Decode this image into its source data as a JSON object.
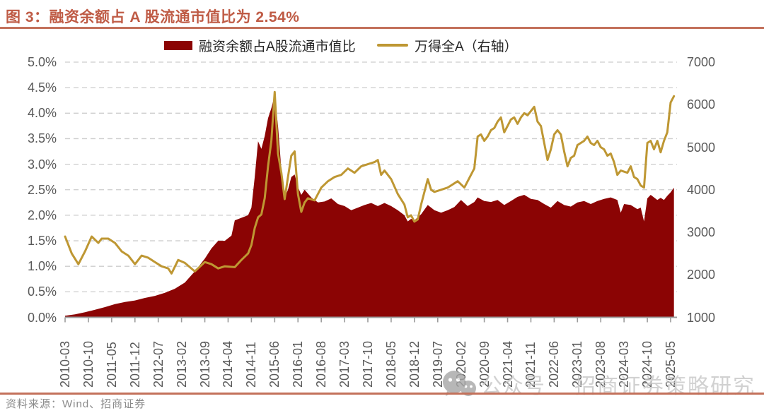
{
  "header": {
    "title": "图 3：融资余额占 A 股流通市值比为 2.54%",
    "accent_color": "#bf5b45"
  },
  "legend": {
    "area_label": "融资余额占A股流通市值比",
    "line_label": "万得全A（右轴）"
  },
  "source": "资料来源：Wind、招商证券",
  "watermark": {
    "icon": "wechat-icon",
    "badge": "公众号",
    "text": "招商证券策略研究",
    "color": "#c6c6c6"
  },
  "chart_data": {
    "type": "area+line combo, dual axis",
    "title": "融资余额占 A 股流通市值比为 2.54%",
    "grid": "horizontal dashed",
    "colors": {
      "area": "#8b0404",
      "line": "#be9733",
      "axis_text": "#595959",
      "gridline": "#cccccc",
      "axis_line": "#9b9b9b"
    },
    "left_axis": {
      "min": 0,
      "max": 5,
      "unit": "%",
      "ticks": [
        "5.0%",
        "4.5%",
        "4.0%",
        "3.5%",
        "3.0%",
        "2.5%",
        "2.0%",
        "1.5%",
        "1.0%",
        "0.5%",
        "0.0%"
      ]
    },
    "right_axis": {
      "min": 1000,
      "max": 7000,
      "ticks": [
        "7000",
        "6000",
        "5000",
        "4000",
        "3000",
        "2000",
        "1000"
      ]
    },
    "x_axis": {
      "first_month": "2010-03",
      "last_month": "2025-05",
      "tick_labels": [
        "2010-03",
        "2010-10",
        "2011-05",
        "2011-12",
        "2012-07",
        "2013-02",
        "2013-09",
        "2014-04",
        "2014-11",
        "2015-06",
        "2016-01",
        "2016-08",
        "2017-03",
        "2017-10",
        "2018-05",
        "2018-12",
        "2019-07",
        "2020-02",
        "2020-09",
        "2021-04",
        "2021-11",
        "2022-06",
        "2023-01",
        "2023-08",
        "2024-03",
        "2024-10",
        "2025-05"
      ]
    },
    "series": [
      {
        "name": "融资余额占A股流通市值比",
        "kind": "area",
        "axis": "left",
        "unit": "%",
        "latest_value": 2.54,
        "points": [
          [
            "2010-03",
            0.03
          ],
          [
            "2010-06",
            0.06
          ],
          [
            "2010-09",
            0.1
          ],
          [
            "2010-12",
            0.15
          ],
          [
            "2011-03",
            0.2
          ],
          [
            "2011-06",
            0.26
          ],
          [
            "2011-09",
            0.3
          ],
          [
            "2011-12",
            0.33
          ],
          [
            "2012-03",
            0.38
          ],
          [
            "2012-06",
            0.42
          ],
          [
            "2012-09",
            0.48
          ],
          [
            "2012-12",
            0.56
          ],
          [
            "2013-03",
            0.68
          ],
          [
            "2013-06",
            0.9
          ],
          [
            "2013-09",
            1.15
          ],
          [
            "2013-11",
            1.35
          ],
          [
            "2014-01",
            1.5
          ],
          [
            "2014-03",
            1.5
          ],
          [
            "2014-05",
            1.6
          ],
          [
            "2014-06",
            1.9
          ],
          [
            "2014-08",
            1.95
          ],
          [
            "2014-10",
            2.0
          ],
          [
            "2014-11",
            2.15
          ],
          [
            "2014-12",
            2.75
          ],
          [
            "2015-01",
            3.45
          ],
          [
            "2015-02",
            3.3
          ],
          [
            "2015-03",
            3.55
          ],
          [
            "2015-04",
            3.9
          ],
          [
            "2015-05",
            4.1
          ],
          [
            "2015-06",
            4.35
          ],
          [
            "2015-07",
            3.75
          ],
          [
            "2015-08",
            2.9
          ],
          [
            "2015-09",
            2.35
          ],
          [
            "2015-10",
            2.5
          ],
          [
            "2015-11",
            2.75
          ],
          [
            "2015-12",
            2.8
          ],
          [
            "2016-01",
            2.55
          ],
          [
            "2016-02",
            2.4
          ],
          [
            "2016-03",
            2.5
          ],
          [
            "2016-05",
            2.35
          ],
          [
            "2016-07",
            2.25
          ],
          [
            "2016-09",
            2.27
          ],
          [
            "2016-11",
            2.33
          ],
          [
            "2017-01",
            2.22
          ],
          [
            "2017-03",
            2.18
          ],
          [
            "2017-05",
            2.1
          ],
          [
            "2017-07",
            2.15
          ],
          [
            "2017-09",
            2.2
          ],
          [
            "2017-11",
            2.24
          ],
          [
            "2018-01",
            2.18
          ],
          [
            "2018-03",
            2.24
          ],
          [
            "2018-05",
            2.18
          ],
          [
            "2018-07",
            2.1
          ],
          [
            "2018-09",
            2.0
          ],
          [
            "2018-10",
            1.88
          ],
          [
            "2018-11",
            1.93
          ],
          [
            "2018-12",
            1.9
          ],
          [
            "2019-02",
            2.02
          ],
          [
            "2019-04",
            2.2
          ],
          [
            "2019-06",
            2.1
          ],
          [
            "2019-08",
            2.05
          ],
          [
            "2019-10",
            2.1
          ],
          [
            "2019-12",
            2.16
          ],
          [
            "2020-02",
            2.3
          ],
          [
            "2020-04",
            2.18
          ],
          [
            "2020-06",
            2.26
          ],
          [
            "2020-07",
            2.35
          ],
          [
            "2020-09",
            2.28
          ],
          [
            "2020-11",
            2.26
          ],
          [
            "2021-01",
            2.3
          ],
          [
            "2021-03",
            2.2
          ],
          [
            "2021-05",
            2.28
          ],
          [
            "2021-07",
            2.36
          ],
          [
            "2021-09",
            2.4
          ],
          [
            "2021-11",
            2.32
          ],
          [
            "2022-01",
            2.3
          ],
          [
            "2022-03",
            2.22
          ],
          [
            "2022-05",
            2.15
          ],
          [
            "2022-07",
            2.28
          ],
          [
            "2022-09",
            2.2
          ],
          [
            "2022-11",
            2.17
          ],
          [
            "2023-01",
            2.25
          ],
          [
            "2023-03",
            2.28
          ],
          [
            "2023-05",
            2.22
          ],
          [
            "2023-07",
            2.28
          ],
          [
            "2023-09",
            2.32
          ],
          [
            "2023-11",
            2.35
          ],
          [
            "2024-01",
            2.3
          ],
          [
            "2024-02",
            2.05
          ],
          [
            "2024-03",
            2.22
          ],
          [
            "2024-05",
            2.2
          ],
          [
            "2024-07",
            2.12
          ],
          [
            "2024-08",
            2.15
          ],
          [
            "2024-09",
            1.88
          ],
          [
            "2024-10",
            2.33
          ],
          [
            "2024-11",
            2.4
          ],
          [
            "2024-12",
            2.35
          ],
          [
            "2025-01",
            2.3
          ],
          [
            "2025-02",
            2.34
          ],
          [
            "2025-03",
            2.3
          ],
          [
            "2025-04",
            2.38
          ],
          [
            "2025-05",
            2.45
          ],
          [
            "2025-06",
            2.54
          ]
        ]
      },
      {
        "name": "万得全A（右轴）",
        "kind": "line",
        "axis": "right",
        "points": [
          [
            "2010-03",
            2900
          ],
          [
            "2010-05",
            2500
          ],
          [
            "2010-07",
            2250
          ],
          [
            "2010-09",
            2550
          ],
          [
            "2010-11",
            2900
          ],
          [
            "2011-01",
            2750
          ],
          [
            "2011-02",
            2850
          ],
          [
            "2011-04",
            2850
          ],
          [
            "2011-06",
            2750
          ],
          [
            "2011-08",
            2550
          ],
          [
            "2011-10",
            2450
          ],
          [
            "2011-12",
            2250
          ],
          [
            "2012-02",
            2450
          ],
          [
            "2012-04",
            2400
          ],
          [
            "2012-06",
            2300
          ],
          [
            "2012-08",
            2200
          ],
          [
            "2012-10",
            2150
          ],
          [
            "2012-11",
            2030
          ],
          [
            "2013-01",
            2350
          ],
          [
            "2013-03",
            2280
          ],
          [
            "2013-06",
            2080
          ],
          [
            "2013-09",
            2300
          ],
          [
            "2013-11",
            2250
          ],
          [
            "2014-01",
            2150
          ],
          [
            "2014-03",
            2200
          ],
          [
            "2014-06",
            2180
          ],
          [
            "2014-08",
            2350
          ],
          [
            "2014-10",
            2500
          ],
          [
            "2014-11",
            2700
          ],
          [
            "2014-12",
            3100
          ],
          [
            "2015-01",
            3350
          ],
          [
            "2015-02",
            3420
          ],
          [
            "2015-03",
            3800
          ],
          [
            "2015-04",
            4550
          ],
          [
            "2015-05",
            5150
          ],
          [
            "2015-06",
            6300
          ],
          [
            "2015-07",
            4850
          ],
          [
            "2015-08",
            4400
          ],
          [
            "2015-09",
            3780
          ],
          [
            "2015-10",
            4300
          ],
          [
            "2015-11",
            4800
          ],
          [
            "2015-12",
            4900
          ],
          [
            "2016-01",
            3900
          ],
          [
            "2016-02",
            3480
          ],
          [
            "2016-03",
            3700
          ],
          [
            "2016-04",
            3800
          ],
          [
            "2016-06",
            3750
          ],
          [
            "2016-08",
            4050
          ],
          [
            "2016-10",
            4200
          ],
          [
            "2016-12",
            4300
          ],
          [
            "2017-02",
            4350
          ],
          [
            "2017-04",
            4500
          ],
          [
            "2017-06",
            4400
          ],
          [
            "2017-08",
            4550
          ],
          [
            "2017-10",
            4600
          ],
          [
            "2017-12",
            4650
          ],
          [
            "2018-01",
            4700
          ],
          [
            "2018-02",
            4350
          ],
          [
            "2018-03",
            4450
          ],
          [
            "2018-05",
            4250
          ],
          [
            "2018-07",
            3900
          ],
          [
            "2018-09",
            3650
          ],
          [
            "2018-10",
            3350
          ],
          [
            "2018-11",
            3400
          ],
          [
            "2018-12",
            3250
          ],
          [
            "2019-01",
            3300
          ],
          [
            "2019-02",
            3650
          ],
          [
            "2019-04",
            4250
          ],
          [
            "2019-05",
            4000
          ],
          [
            "2019-06",
            3950
          ],
          [
            "2019-08",
            4000
          ],
          [
            "2019-10",
            4050
          ],
          [
            "2019-12",
            4150
          ],
          [
            "2020-01",
            4200
          ],
          [
            "2020-03",
            4050
          ],
          [
            "2020-04",
            4200
          ],
          [
            "2020-06",
            4500
          ],
          [
            "2020-07",
            5250
          ],
          [
            "2020-08",
            5300
          ],
          [
            "2020-09",
            5150
          ],
          [
            "2020-10",
            5250
          ],
          [
            "2020-11",
            5400
          ],
          [
            "2020-12",
            5450
          ],
          [
            "2021-01",
            5600
          ],
          [
            "2021-02",
            5700
          ],
          [
            "2021-03",
            5350
          ],
          [
            "2021-04",
            5500
          ],
          [
            "2021-05",
            5650
          ],
          [
            "2021-06",
            5700
          ],
          [
            "2021-07",
            5550
          ],
          [
            "2021-08",
            5700
          ],
          [
            "2021-09",
            5800
          ],
          [
            "2021-10",
            5750
          ],
          [
            "2021-11",
            5850
          ],
          [
            "2021-12",
            5950
          ],
          [
            "2022-01",
            5600
          ],
          [
            "2022-02",
            5500
          ],
          [
            "2022-03",
            5100
          ],
          [
            "2022-04",
            4700
          ],
          [
            "2022-05",
            4950
          ],
          [
            "2022-06",
            5300
          ],
          [
            "2022-07",
            5400
          ],
          [
            "2022-08",
            5300
          ],
          [
            "2022-09",
            4900
          ],
          [
            "2022-10",
            4550
          ],
          [
            "2022-11",
            4750
          ],
          [
            "2022-12",
            4800
          ],
          [
            "2023-01",
            5050
          ],
          [
            "2023-02",
            5100
          ],
          [
            "2023-03",
            5150
          ],
          [
            "2023-04",
            5250
          ],
          [
            "2023-05",
            5100
          ],
          [
            "2023-06",
            5050
          ],
          [
            "2023-07",
            5150
          ],
          [
            "2023-08",
            5000
          ],
          [
            "2023-09",
            4950
          ],
          [
            "2023-10",
            4800
          ],
          [
            "2023-11",
            4850
          ],
          [
            "2023-12",
            4650
          ],
          [
            "2024-01",
            4350
          ],
          [
            "2024-02",
            4450
          ],
          [
            "2024-04",
            4400
          ],
          [
            "2024-05",
            4550
          ],
          [
            "2024-06",
            4300
          ],
          [
            "2024-07",
            4250
          ],
          [
            "2024-08",
            4100
          ],
          [
            "2024-09",
            4050
          ],
          [
            "2024-10",
            5100
          ],
          [
            "2024-11",
            5150
          ],
          [
            "2024-12",
            4950
          ],
          [
            "2025-01",
            5150
          ],
          [
            "2025-02",
            4880
          ],
          [
            "2025-03",
            5150
          ],
          [
            "2025-04",
            5350
          ],
          [
            "2025-05",
            6050
          ],
          [
            "2025-06",
            6200
          ]
        ]
      }
    ]
  }
}
